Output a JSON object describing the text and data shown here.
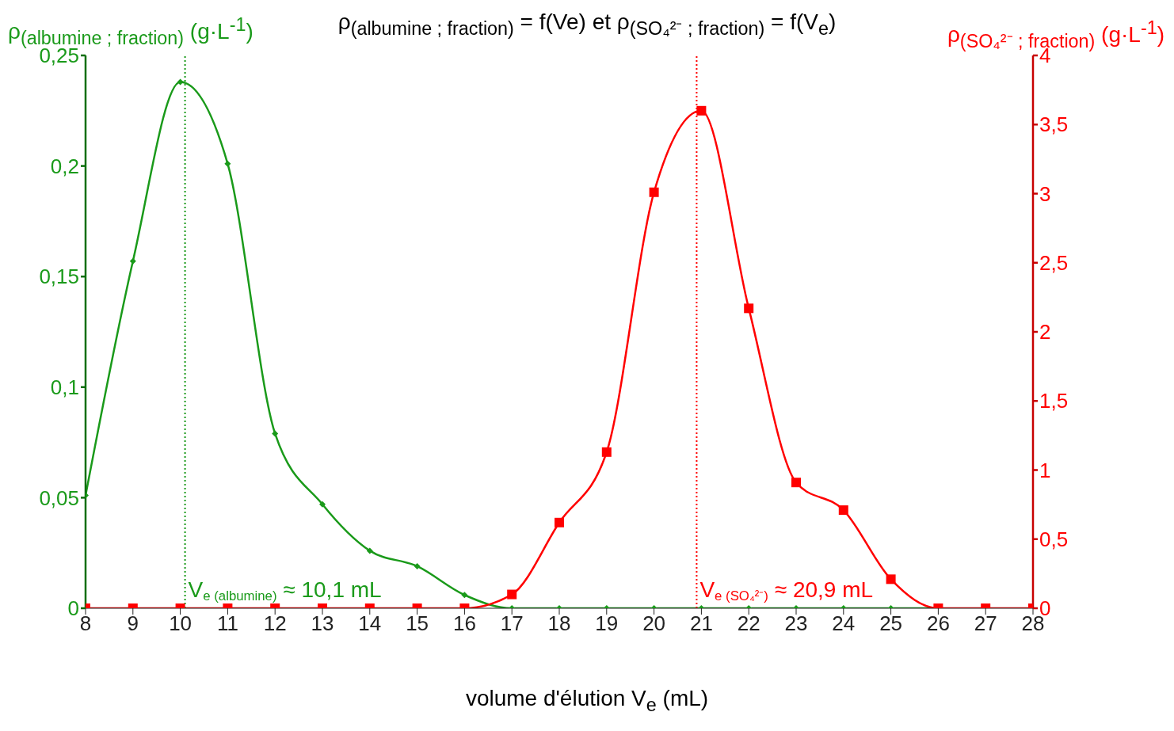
{
  "chart_data": {
    "type": "line",
    "title": "ρ$_{(albumine ; fraction)}$ = f(Ve) et ρ$_{(SO₄²⁻ ; fraction)}$ = f(V$_{e}$)",
    "xlabel": "volume d'élution V$_{e}$ (mL)",
    "ylabel": "ρ$_{(albumine ; fraction)}$ (g·L$^{-1}$)",
    "y2label": "ρ$_{(SO₄²⁻ ; fraction)}$ (g·L$^{-1}$)",
    "x": [
      8,
      9,
      10,
      11,
      12,
      13,
      14,
      15,
      16,
      17,
      18,
      19,
      20,
      21,
      22,
      23,
      24,
      25,
      26,
      27,
      28
    ],
    "series": [
      {
        "color": "#1a9a1a",
        "marker": "diamond",
        "values": [
          0.051,
          0.157,
          0.238,
          0.201,
          0.079,
          0.047,
          0.026,
          0.019,
          0.006,
          0,
          0,
          0,
          0,
          0,
          0,
          0,
          0,
          0,
          0,
          null,
          null
        ]
      },
      {
        "color": "#ff0000",
        "marker": "square",
        "axis": "y2",
        "values": [
          0,
          0,
          0,
          0,
          0,
          0,
          0,
          0,
          0,
          0.1,
          0.62,
          1.13,
          3.01,
          3.6,
          2.17,
          0.91,
          0.71,
          0.21,
          0,
          0,
          0
        ]
      }
    ],
    "xlim": [
      8,
      28
    ],
    "xticks": [
      8,
      9,
      10,
      11,
      12,
      13,
      14,
      15,
      16,
      17,
      18,
      19,
      20,
      21,
      22,
      23,
      24,
      25,
      26,
      27,
      28
    ],
    "ylim": [
      0,
      0.25
    ],
    "yticks": [
      0,
      {
        "value": 0.05,
        "label": "0,05"
      },
      {
        "value": 0.1,
        "label": "0,1"
      },
      {
        "value": 0.15,
        "label": "0,15"
      },
      {
        "value": 0.2,
        "label": "0,2"
      },
      {
        "value": 0.25,
        "label": "0,25"
      }
    ],
    "y2lim": [
      0,
      4
    ],
    "y2ticks": [
      0,
      {
        "value": 0.5,
        "label": "0,5"
      },
      1,
      {
        "value": 1.5,
        "label": "1,5"
      },
      2,
      {
        "value": 2.5,
        "label": "2,5"
      },
      3,
      {
        "value": 3.5,
        "label": "3,5"
      },
      4
    ],
    "ref_lines": [
      {
        "axis": "x",
        "value": 10.1,
        "label": "V$_{e (albumine)}$ ≈ 10,1 mL",
        "color": "#1a9a1a",
        "line_style": "dotted"
      },
      {
        "axis": "x",
        "value": 20.9,
        "label": "V$_{e (SO₄²⁻)}$ ≈ 20,9 mL",
        "color": "#ff0000",
        "line_style": "dotted"
      }
    ],
    "grid": false,
    "legend": false,
    "line_style": "solid"
  }
}
